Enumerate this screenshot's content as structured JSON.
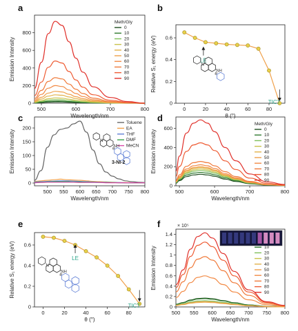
{
  "colors": {
    "c0": "#1f4e1f",
    "c10": "#2f7a2f",
    "c20": "#7fbf5a",
    "c30": "#c9c24a",
    "c40": "#e2b24a",
    "c50": "#f0a04a",
    "c60": "#f28a45",
    "c70": "#f07a3a",
    "c80": "#ee5a32",
    "c90": "#e0302a",
    "orange_line": "#f0a04a",
    "yellow_point": "#e8d04a",
    "teal": "#2aa58a",
    "toluene": "#666666",
    "ea": "#f0a04a",
    "thf": "#5f7fd6",
    "dmf": "#35a04a",
    "mecn": "#d84aa8"
  },
  "chart_data": [
    {
      "panel_label": "a",
      "type": "line",
      "ylabel": "Emission Intensity",
      "xlabel": "Wavelength/nm",
      "xlim": [
        480,
        800
      ],
      "ylim": [
        0,
        1000
      ],
      "xticks": [
        500,
        600,
        700,
        800
      ],
      "yticks": [
        0,
        200,
        400,
        600,
        800
      ],
      "legend_title": "Meth/Gly",
      "legend_position": "top-right",
      "x": [
        480,
        500,
        520,
        540,
        560,
        580,
        600,
        620,
        650,
        700,
        750,
        800
      ],
      "shape": [
        0.18,
        0.5,
        0.85,
        1.0,
        0.95,
        0.75,
        0.55,
        0.38,
        0.2,
        0.07,
        0.02,
        0.0
      ],
      "series": [
        {
          "name": "0",
          "peak": 15
        },
        {
          "name": "10",
          "peak": 25
        },
        {
          "name": "20",
          "peak": 40
        },
        {
          "name": "30",
          "peak": 60
        },
        {
          "name": "40",
          "peak": 95
        },
        {
          "name": "50",
          "peak": 135
        },
        {
          "name": "60",
          "peak": 200
        },
        {
          "name": "70",
          "peak": 290
        },
        {
          "name": "80",
          "peak": 480
        },
        {
          "name": "90",
          "peak": 930
        }
      ]
    },
    {
      "panel_label": "b",
      "type": "line",
      "ylabel": "Relative S₁ energy (eV)",
      "xlabel": "θ (°)",
      "xlim": [
        -8,
        95
      ],
      "ylim": [
        0,
        0.72
      ],
      "xticks": [
        0,
        20,
        40,
        60,
        80
      ],
      "yticks": [
        0,
        0.2,
        0.4,
        0.6
      ],
      "x": [
        0,
        10,
        20,
        30,
        40,
        50,
        60,
        70,
        80,
        90
      ],
      "y": [
        0.65,
        0.6,
        0.56,
        0.55,
        0.54,
        0.535,
        0.53,
        0.5,
        0.3,
        0.0
      ],
      "annotations": [
        {
          "text": "LE",
          "x": 18,
          "y": 0.4
        },
        {
          "text": "TICT",
          "x": 85,
          "y": 0.02
        }
      ]
    },
    {
      "panel_label": "c",
      "type": "line",
      "ylabel": "Emission Intensity",
      "xlabel": "Wavelength/nm",
      "xlim": [
        460,
        800
      ],
      "ylim": [
        -10,
        240
      ],
      "xticks": [
        500,
        550,
        600,
        650,
        700,
        750,
        800
      ],
      "yticks": [
        0,
        50,
        100,
        150,
        200
      ],
      "legend_position": "top-right",
      "compound_label": "3-NI-2",
      "x": [
        460,
        480,
        500,
        520,
        540,
        560,
        580,
        600,
        620,
        640,
        660,
        680,
        700,
        720,
        740,
        760,
        780,
        800
      ],
      "series": [
        {
          "name": "Toluene",
          "y": [
            10,
            45,
            130,
            175,
            195,
            200,
            215,
            225,
            185,
            120,
            70,
            40,
            25,
            15,
            8,
            5,
            3,
            2
          ]
        },
        {
          "name": "EA",
          "y": [
            6,
            8,
            10,
            12,
            14,
            12,
            11,
            10,
            8,
            6,
            5,
            4,
            3,
            2,
            2,
            1,
            1,
            1
          ]
        },
        {
          "name": "THF",
          "y": [
            4,
            5,
            6,
            7,
            8,
            8,
            7,
            6,
            5,
            4,
            3,
            3,
            2,
            2,
            1,
            1,
            1,
            1
          ]
        },
        {
          "name": "DMF",
          "y": [
            2,
            3,
            4,
            5,
            5,
            5,
            4,
            4,
            3,
            3,
            2,
            2,
            2,
            1,
            1,
            1,
            1,
            1
          ]
        },
        {
          "name": "MeCN",
          "y": [
            1,
            2,
            3,
            3,
            3,
            3,
            3,
            2,
            2,
            2,
            2,
            1,
            1,
            1,
            1,
            1,
            1,
            1
          ]
        }
      ]
    },
    {
      "panel_label": "d",
      "type": "line",
      "ylabel": "Emission Intensity",
      "xlabel": "Wavelength/nm",
      "xlim": [
        490,
        800
      ],
      "ylim": [
        0,
        720
      ],
      "xticks": [
        500,
        600,
        700,
        800
      ],
      "yticks": [
        0,
        200,
        400,
        600
      ],
      "legend_title": "Meth/Gly",
      "legend_position": "top-right",
      "x": [
        490,
        500,
        520,
        540,
        560,
        580,
        600,
        630,
        660,
        700,
        750,
        800
      ],
      "shape": [
        0.22,
        0.45,
        0.8,
        0.95,
        1.0,
        0.95,
        0.82,
        0.58,
        0.38,
        0.18,
        0.06,
        0.02
      ],
      "series": [
        {
          "name": "0",
          "peak": 120
        },
        {
          "name": "10",
          "peak": 140
        },
        {
          "name": "20",
          "peak": 160
        },
        {
          "name": "30",
          "peak": 175
        },
        {
          "name": "40",
          "peak": 190
        },
        {
          "name": "50",
          "peak": 200
        },
        {
          "name": "60",
          "peak": 220
        },
        {
          "name": "70",
          "peak": 255
        },
        {
          "name": "80",
          "peak": 450
        },
        {
          "name": "90",
          "peak": 690
        }
      ]
    },
    {
      "panel_label": "e",
      "type": "line",
      "ylabel": "Relative S₁ energy (eV)",
      "xlabel": "θ (°)",
      "xlim": [
        -8,
        95
      ],
      "ylim": [
        0,
        0.72
      ],
      "xticks": [
        0,
        20,
        40,
        60,
        80
      ],
      "yticks": [
        0,
        0.2,
        0.4,
        0.6
      ],
      "x": [
        0,
        10,
        20,
        30,
        40,
        50,
        60,
        70,
        80,
        90
      ],
      "y": [
        0.68,
        0.67,
        0.64,
        0.6,
        0.54,
        0.48,
        0.4,
        0.3,
        0.17,
        0.03
      ],
      "annotations": [
        {
          "text": "LE",
          "x": 30,
          "y": 0.48
        },
        {
          "text": "TICT",
          "x": 85,
          "y": 0.02
        }
      ]
    },
    {
      "panel_label": "f",
      "type": "line",
      "ylabel": "Emission Intensity",
      "xlabel": "Wavelength/nm",
      "y_multiplier": "× 10⁵",
      "xlim": [
        500,
        800
      ],
      "ylim": [
        0,
        1.5
      ],
      "xticks": [
        500,
        550,
        600,
        650,
        700,
        750,
        800
      ],
      "yticks": [
        0,
        0.2,
        0.4,
        0.6,
        0.8,
        1.0,
        1.2,
        1.4
      ],
      "legend_title": "f_w (vol%)",
      "legend_position": "top-right",
      "x": [
        500,
        520,
        540,
        560,
        580,
        600,
        630,
        660,
        700,
        750,
        800
      ],
      "shape": [
        0.3,
        0.5,
        0.78,
        0.95,
        1.0,
        0.93,
        0.72,
        0.48,
        0.23,
        0.07,
        0.02
      ],
      "series": [
        {
          "name": "0",
          "peak": 0.17
        },
        {
          "name": "10",
          "peak": 0.16
        },
        {
          "name": "20",
          "peak": 0.12
        },
        {
          "name": "30",
          "peak": 0.1
        },
        {
          "name": "40",
          "peak": 0.09
        },
        {
          "name": "50",
          "peak": 0.1
        },
        {
          "name": "60",
          "peak": 0.6
        },
        {
          "name": "70",
          "peak": 0.97
        },
        {
          "name": "80",
          "peak": 1.25
        },
        {
          "name": "90",
          "peak": 1.43
        }
      ]
    }
  ]
}
